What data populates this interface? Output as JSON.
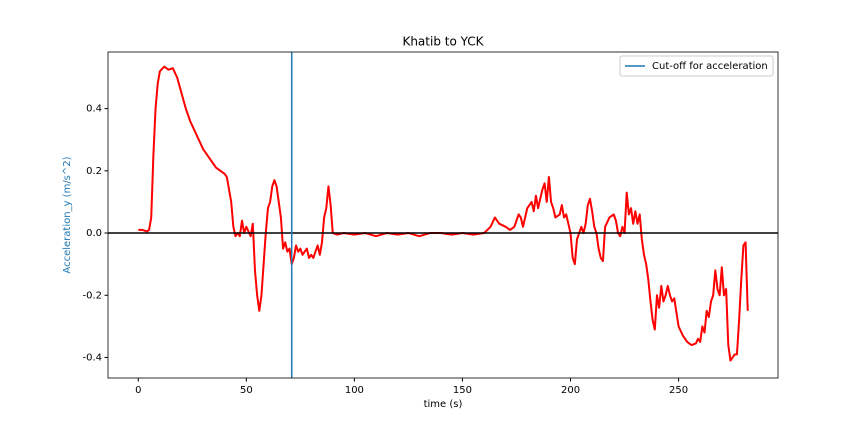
{
  "chart_data": {
    "type": "line",
    "title": "Khatib to YCK",
    "xlabel": "time (s)",
    "ylabel": "Acceleration_y (m/s^2)",
    "ylabel_color": "#1f77b4",
    "color": "#ff0000",
    "x": [
      0,
      2,
      4,
      5,
      6,
      7,
      8,
      9,
      10,
      12,
      14,
      16,
      18,
      20,
      22,
      24,
      26,
      28,
      30,
      32,
      34,
      36,
      38,
      40,
      41,
      42,
      43,
      44,
      45,
      46,
      47,
      48,
      49,
      50,
      52,
      53,
      54,
      55,
      56,
      57,
      58,
      59,
      60,
      61,
      62,
      63,
      64,
      65,
      66,
      67,
      68,
      69,
      70,
      71,
      72,
      73,
      74,
      75,
      76,
      77,
      78,
      79,
      80,
      81,
      82,
      83,
      84,
      85,
      86,
      87,
      88,
      89,
      90,
      92,
      95,
      100,
      105,
      110,
      115,
      120,
      125,
      130,
      135,
      140,
      145,
      150,
      155,
      160,
      163,
      165,
      167,
      170,
      172,
      174,
      176,
      177,
      178,
      180,
      182,
      183,
      184,
      185,
      187,
      188,
      189,
      190,
      191,
      192,
      193,
      195,
      196,
      197,
      198,
      199,
      200,
      201,
      202,
      203,
      205,
      206,
      207,
      208,
      209,
      210,
      211,
      212,
      213,
      214,
      215,
      216,
      218,
      220,
      221,
      222,
      223,
      224,
      225,
      226,
      227,
      228,
      229,
      230,
      231,
      232,
      233,
      234,
      235,
      236,
      237,
      238,
      239,
      240,
      241,
      242,
      243,
      244,
      245,
      246,
      247,
      248,
      250,
      252,
      254,
      256,
      258,
      259,
      260,
      261,
      262,
      263,
      264,
      265,
      266,
      267,
      268,
      269,
      270,
      271,
      272,
      273,
      274,
      275,
      276,
      277,
      278,
      279,
      280,
      281,
      282
    ],
    "values": [
      0.01,
      0.01,
      0.005,
      0.01,
      0.05,
      0.25,
      0.4,
      0.48,
      0.52,
      0.535,
      0.525,
      0.53,
      0.5,
      0.45,
      0.4,
      0.36,
      0.33,
      0.3,
      0.27,
      0.25,
      0.23,
      0.21,
      0.2,
      0.19,
      0.18,
      0.14,
      0.1,
      0.02,
      -0.01,
      0.0,
      -0.01,
      0.04,
      0.0,
      0.02,
      -0.01,
      0.03,
      -0.12,
      -0.2,
      -0.25,
      -0.2,
      -0.1,
      0.0,
      0.08,
      0.1,
      0.15,
      0.17,
      0.15,
      0.1,
      0.05,
      -0.05,
      -0.03,
      -0.06,
      -0.05,
      -0.1,
      -0.08,
      -0.04,
      -0.06,
      -0.05,
      -0.07,
      -0.06,
      -0.05,
      -0.08,
      -0.07,
      -0.08,
      -0.06,
      -0.04,
      -0.07,
      -0.03,
      0.05,
      0.08,
      0.15,
      0.09,
      0.0,
      -0.005,
      0.0,
      -0.005,
      0.0,
      -0.01,
      0.0,
      -0.005,
      0.0,
      -0.01,
      0.0,
      0.0,
      -0.005,
      0.0,
      -0.005,
      0.0,
      0.02,
      0.05,
      0.03,
      0.02,
      0.01,
      0.02,
      0.06,
      0.05,
      0.02,
      0.08,
      0.1,
      0.07,
      0.12,
      0.08,
      0.14,
      0.16,
      0.1,
      0.18,
      0.1,
      0.08,
      0.05,
      0.06,
      0.09,
      0.05,
      0.06,
      0.03,
      0.0,
      -0.08,
      -0.1,
      -0.02,
      0.02,
      0.0,
      0.03,
      0.09,
      0.11,
      0.07,
      0.02,
      0.0,
      -0.05,
      -0.08,
      -0.09,
      0.02,
      0.05,
      0.06,
      0.04,
      0.0,
      -0.01,
      0.02,
      0.0,
      0.13,
      0.06,
      0.08,
      0.03,
      0.07,
      0.03,
      0.06,
      -0.02,
      -0.07,
      -0.1,
      -0.15,
      -0.22,
      -0.28,
      -0.31,
      -0.2,
      -0.24,
      -0.17,
      -0.22,
      -0.2,
      -0.17,
      -0.2,
      -0.22,
      -0.21,
      -0.3,
      -0.33,
      -0.35,
      -0.36,
      -0.355,
      -0.34,
      -0.35,
      -0.3,
      -0.32,
      -0.25,
      -0.27,
      -0.22,
      -0.2,
      -0.12,
      -0.18,
      -0.2,
      -0.11,
      -0.2,
      -0.18,
      -0.36,
      -0.41,
      -0.4,
      -0.39,
      -0.39,
      -0.28,
      -0.15,
      -0.04,
      -0.03,
      -0.25
    ],
    "xlim": [
      -14,
      296
    ],
    "ylim": [
      -0.466,
      0.582
    ],
    "xticks": [
      0,
      50,
      100,
      150,
      200,
      250
    ],
    "yticks": [
      -0.4,
      -0.2,
      {
        "value": 0,
        "label": "0.0"
      },
      0.2,
      0.4
    ],
    "vline": {
      "x": 71,
      "label": "Cut-off for acceleration",
      "color": "#1f77b4"
    },
    "hline": {
      "y": 0,
      "color": "#000000"
    }
  }
}
